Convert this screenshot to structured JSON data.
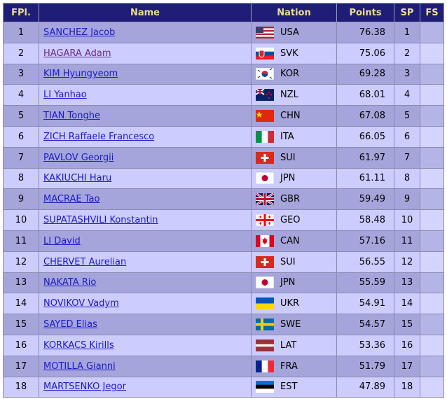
{
  "table": {
    "header": [
      "FPl.",
      "Name",
      "Nation",
      "Points",
      "SP",
      "FS"
    ],
    "rows": [
      [
        1,
        "SANCHEZ Jacob",
        "USA",
        76.38,
        1
      ],
      [
        2,
        "HAGARA Adam",
        "SVK",
        75.06,
        2
      ],
      [
        3,
        "KIM Hyungyeom",
        "KOR",
        69.28,
        3
      ],
      [
        4,
        "LI Yanhao",
        "NZL",
        68.01,
        4
      ],
      [
        5,
        "TIAN Tonghe",
        "CHN",
        67.08,
        5
      ],
      [
        6,
        "ZICH Raffaele Francesco",
        "ITA",
        66.05,
        6
      ],
      [
        7,
        "PAVLOV Georgii",
        "SUI",
        61.97,
        7
      ],
      [
        8,
        "KAKIUCHI Haru",
        "JPN",
        61.11,
        8
      ],
      [
        9,
        "MACRAE Tao",
        "GBR",
        59.49,
        9
      ],
      [
        10,
        "SUPATASHVILI Konstantin",
        "GEO",
        58.48,
        10
      ],
      [
        11,
        "LI David",
        "CAN",
        57.16,
        11
      ],
      [
        12,
        "CHERVET Aurelian",
        "SUI",
        56.55,
        12
      ],
      [
        13,
        "NAKATA Rio",
        "JPN",
        55.59,
        13
      ],
      [
        14,
        "NOVIKOV Vadym",
        "UKR",
        54.91,
        14
      ],
      [
        15,
        "SAYED Elias",
        "SWE",
        54.57,
        15
      ],
      [
        16,
        "KORKACS Kirills",
        "LAT",
        53.36,
        16
      ],
      [
        17,
        "MOTILLA Gianni",
        "FRA",
        51.79,
        17
      ],
      [
        18,
        "MARTSENKO Jegor",
        "EST",
        47.89,
        18
      ]
    ]
  }
}
